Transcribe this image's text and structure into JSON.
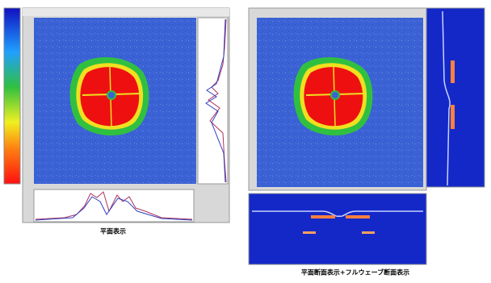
{
  "captions": {
    "plane_view": "平面表示",
    "section_view": "平面断面表示+フルウェーブ断面表示"
  }
}
